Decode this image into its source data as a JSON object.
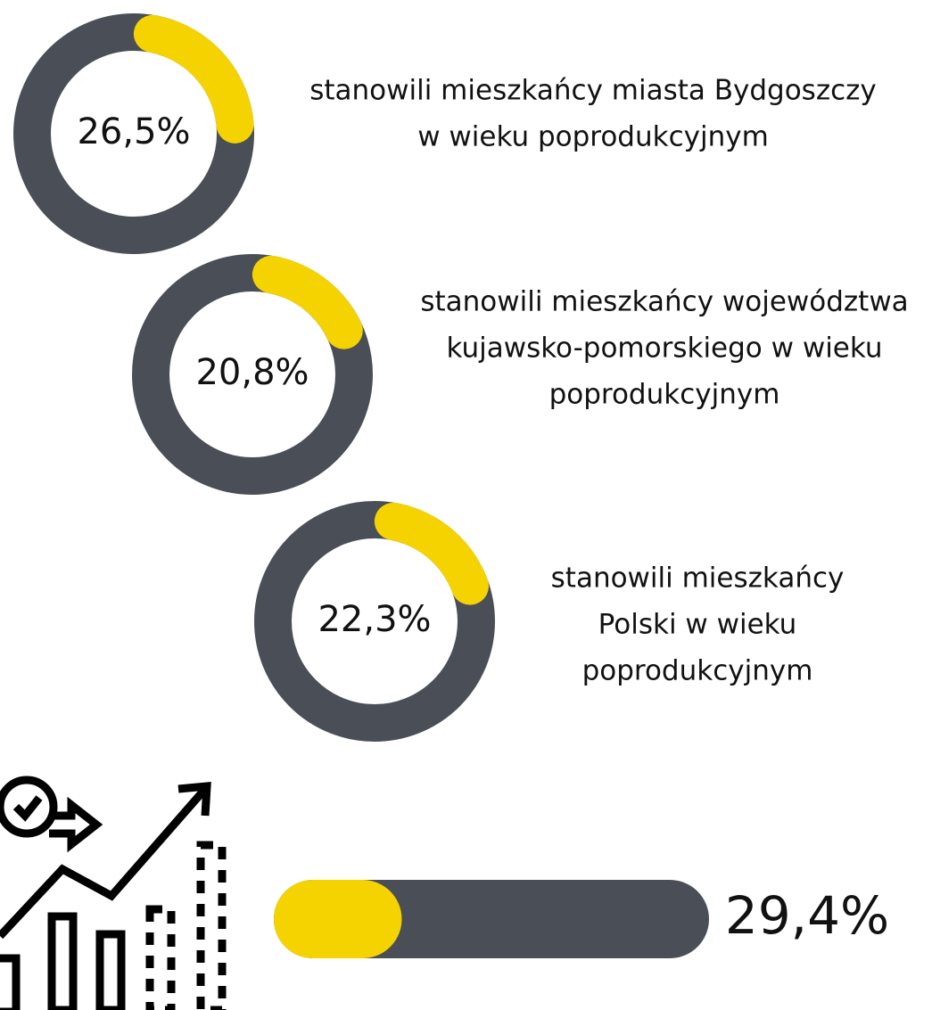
{
  "chart_data": [
    {
      "type": "donut",
      "values": [
        26.5
      ],
      "value_labels": [
        "26,5%"
      ],
      "ylim": [
        0,
        100
      ],
      "color": "#f5d300",
      "track_color": "#4a4f57",
      "caption": [
        "stanowili mieszkańcy miasta Bydgoszczy",
        "w wieku poprodukcyjnym"
      ]
    },
    {
      "type": "donut",
      "values": [
        20.8
      ],
      "value_labels": [
        "20,8%"
      ],
      "ylim": [
        0,
        100
      ],
      "color": "#f5d300",
      "track_color": "#4a4f57",
      "caption": [
        "stanowili mieszkańcy województwa",
        "kujawsko-pomorskiego w wieku",
        "poprodukcyjnym"
      ]
    },
    {
      "type": "donut",
      "values": [
        22.3
      ],
      "value_labels": [
        "22,3%"
      ],
      "ylim": [
        0,
        100
      ],
      "color": "#f5d300",
      "track_color": "#4a4f57",
      "caption": [
        "stanowili mieszkańcy",
        "Polski w wieku",
        "poprodukcyjnym"
      ]
    },
    {
      "type": "progress",
      "values": [
        29.4
      ],
      "value_labels": [
        "29,4%"
      ],
      "xlim": [
        0,
        100
      ],
      "color": "#f5d300",
      "track_color": "#4a4f57"
    }
  ]
}
